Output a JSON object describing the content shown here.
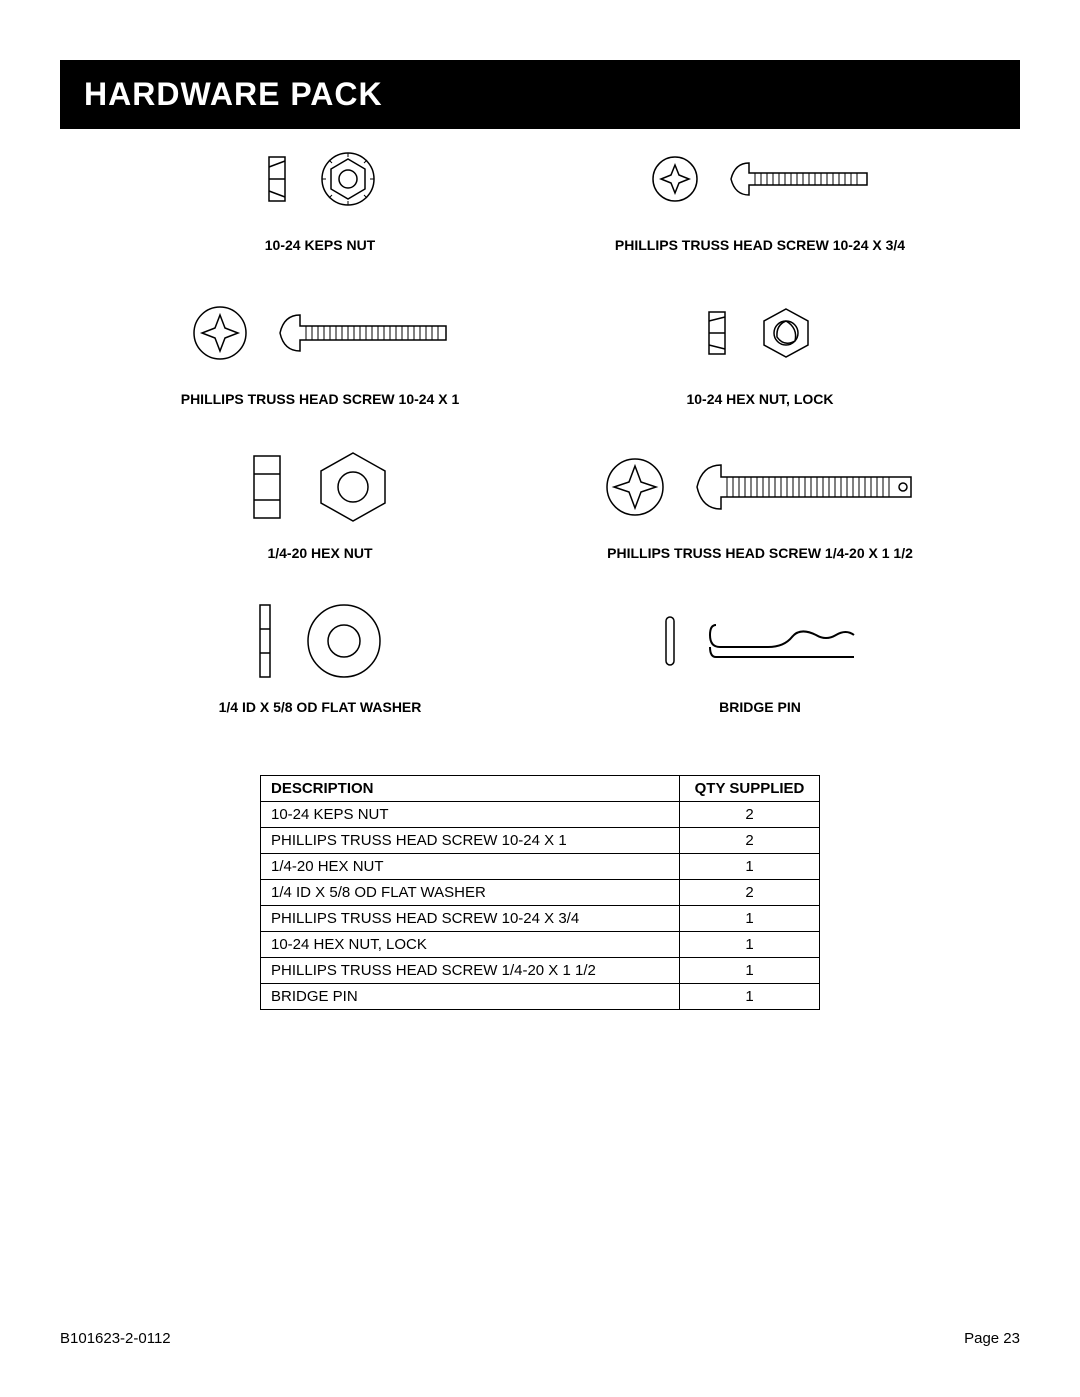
{
  "header": {
    "title": "HARDWARE PACK"
  },
  "parts": {
    "keps_nut": "10-24 KEPS NUT",
    "screw_10_24_x1": "PHILLIPS TRUSS HEAD SCREW 10-24 X 1",
    "hex_nut_14_20": "1/4-20 HEX NUT",
    "flat_washer": "1/4 ID X 5/8 OD FLAT WASHER",
    "screw_10_24_x34": "PHILLIPS TRUSS HEAD SCREW 10-24 X 3/4",
    "hex_nut_lock": "10-24 HEX NUT, LOCK",
    "screw_14_20_x112": "PHILLIPS TRUSS HEAD SCREW 1/4-20 X 1 1/2",
    "bridge_pin": "BRIDGE PIN"
  },
  "table": {
    "columns": [
      "DESCRIPTION",
      "QTY SUPPLIED"
    ],
    "rows": [
      [
        "10-24 KEPS NUT",
        "2"
      ],
      [
        "PHILLIPS TRUSS HEAD SCREW 10-24 X 1",
        "2"
      ],
      [
        "1/4-20 HEX NUT",
        "1"
      ],
      [
        "1/4 ID X 5/8 OD FLAT WASHER",
        "2"
      ],
      [
        "PHILLIPS TRUSS HEAD SCREW 10-24 X 3/4",
        "1"
      ],
      [
        "10-24 HEX NUT, LOCK",
        "1"
      ],
      [
        "PHILLIPS TRUSS HEAD SCREW 1/4-20 X 1 1/2",
        "1"
      ],
      [
        "BRIDGE PIN",
        "1"
      ]
    ]
  },
  "footer": {
    "doc_id": "B101623-2-0112",
    "page_label": "Page 23"
  },
  "style": {
    "page_bg": "#ffffff",
    "header_bg": "#000000",
    "header_fg": "#ffffff",
    "text_color": "#000000",
    "label_fontsize": 14,
    "table_fontsize": 15,
    "title_fontsize": 32,
    "table_border_color": "#000000"
  }
}
